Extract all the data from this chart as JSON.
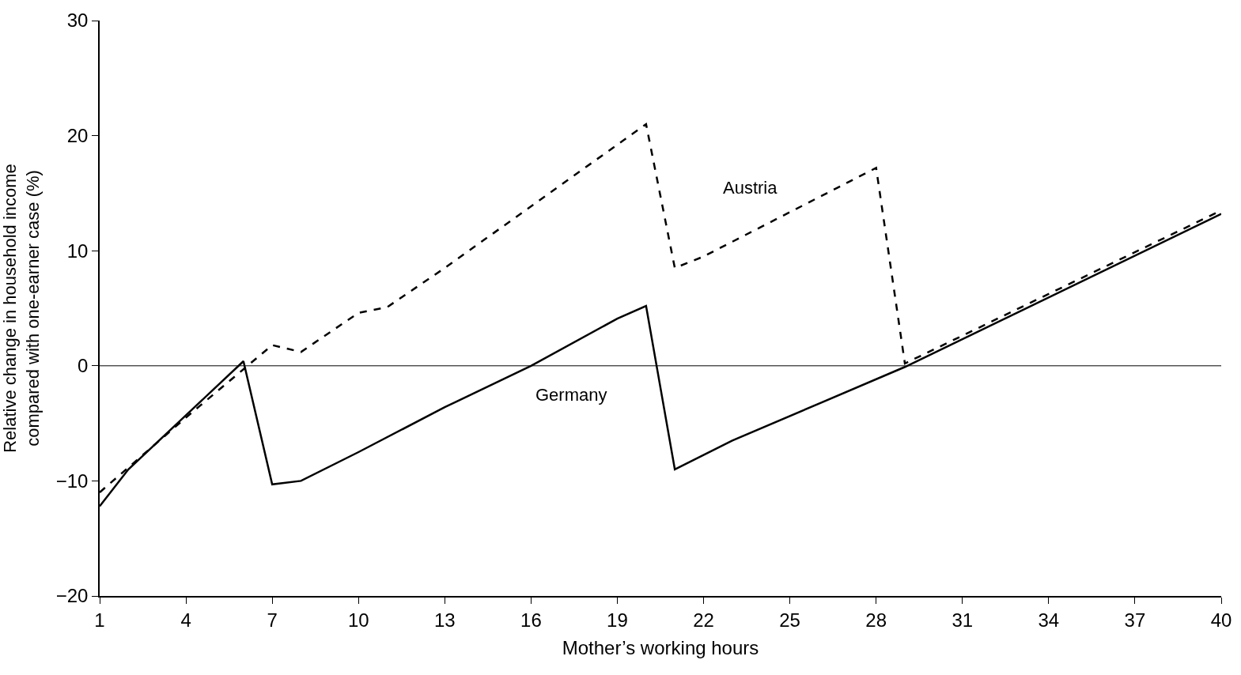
{
  "chart_data": {
    "type": "line",
    "xlabel": "Mother’s working hours",
    "ylabel": "Relative change in household income\ncompared with one-earner case (%)",
    "xlim": [
      1,
      40
    ],
    "xticks": [
      1,
      4,
      7,
      10,
      13,
      16,
      19,
      22,
      25,
      28,
      31,
      34,
      37,
      40
    ],
    "ylim": [
      -20,
      30
    ],
    "yticks": [
      -20,
      -10,
      0,
      10,
      20,
      30
    ],
    "legend": false,
    "marker": "none",
    "ref_lines": [
      {
        "axis": "y",
        "value": 0,
        "color": "#000000",
        "line_style": "solid"
      }
    ],
    "series": [
      {
        "name": "Austria",
        "color": "#000000",
        "line_style": "dashed",
        "x": [
          1,
          4,
          6,
          7,
          8,
          10,
          11,
          13,
          20,
          21,
          22,
          28,
          29,
          40
        ],
        "values": [
          -11,
          -4.5,
          -0.3,
          1.8,
          1.2,
          4.6,
          5.1,
          8.5,
          21,
          8.5,
          9.5,
          17.2,
          0.2,
          13.5
        ]
      },
      {
        "name": "Germany",
        "color": "#000000",
        "line_style": "solid",
        "x": [
          1,
          2,
          4,
          6,
          7,
          8,
          10,
          13,
          16,
          19,
          20,
          21,
          23,
          29,
          40
        ],
        "values": [
          -12.2,
          -9,
          -4.3,
          0.4,
          -10.3,
          -10,
          -7.5,
          -3.6,
          0,
          4.1,
          5.2,
          -9,
          -6.5,
          -0.1,
          13.2
        ]
      }
    ]
  }
}
